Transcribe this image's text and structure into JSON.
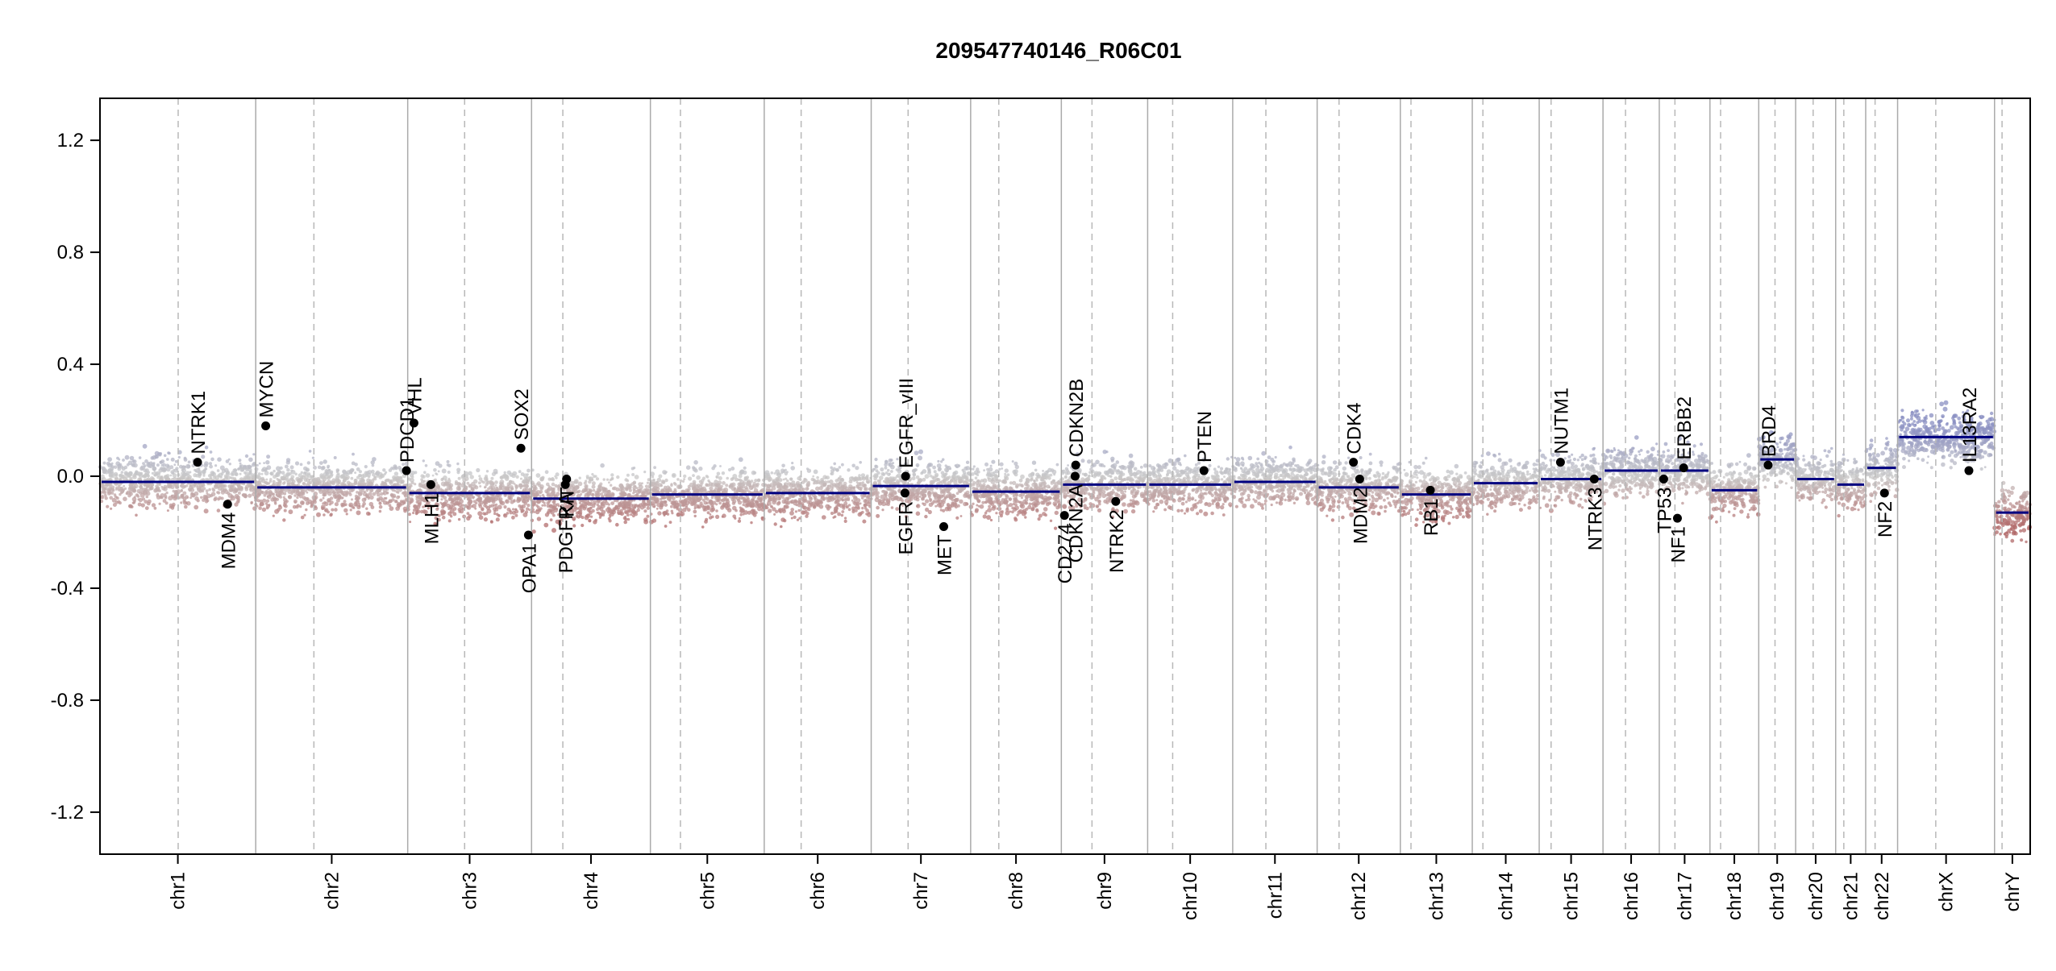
{
  "chart_data": {
    "type": "scatter",
    "title": "209547740146_R06C01",
    "xlabel": "",
    "ylabel": "",
    "ylim": [
      -1.35,
      1.35
    ],
    "y_ticks": [
      {
        "value": 1.2,
        "label": "1.2"
      },
      {
        "value": 0.8,
        "label": "0.8"
      },
      {
        "value": 0.4,
        "label": "0.4"
      },
      {
        "value": 0.0,
        "label": "0.0"
      },
      {
        "value": -0.4,
        "label": "-0.4"
      },
      {
        "value": -0.8,
        "label": "-0.8"
      },
      {
        "value": -1.2,
        "label": "-1.2"
      }
    ],
    "grid": false,
    "colors": {
      "gain": "#8a8fc2",
      "neutral": "#c8c8c8",
      "loss": "#b26a6a",
      "segment": "#000080",
      "boundary": "#aaaaaa",
      "centromere": "#b8b8b8",
      "gene_point": "#000000"
    },
    "chromosomes": [
      {
        "name": "chr1",
        "start": 0,
        "end": 249,
        "centromere": 125,
        "segment": -0.02
      },
      {
        "name": "chr2",
        "start": 249,
        "end": 492,
        "centromere": 342,
        "segment": -0.04
      },
      {
        "name": "chr3",
        "start": 492,
        "end": 690,
        "centromere": 583,
        "segment": -0.06
      },
      {
        "name": "chr4",
        "start": 690,
        "end": 880,
        "centromere": 740,
        "segment": -0.08
      },
      {
        "name": "chr5",
        "start": 880,
        "end": 1062,
        "centromere": 928,
        "segment": -0.065
      },
      {
        "name": "chr6",
        "start": 1062,
        "end": 1233,
        "centromere": 1121,
        "segment": -0.06
      },
      {
        "name": "chr7",
        "start": 1233,
        "end": 1392,
        "centromere": 1292,
        "segment": -0.035
      },
      {
        "name": "chr8",
        "start": 1392,
        "end": 1537,
        "centromere": 1437,
        "segment": -0.055
      },
      {
        "name": "chr9",
        "start": 1537,
        "end": 1675,
        "centromere": 1586,
        "segment": -0.03
      },
      {
        "name": "chr10",
        "start": 1675,
        "end": 1811,
        "centromere": 1715,
        "segment": -0.03
      },
      {
        "name": "chr11",
        "start": 1811,
        "end": 1946,
        "centromere": 1864,
        "segment": -0.02
      },
      {
        "name": "chr12",
        "start": 1946,
        "end": 2079,
        "centromere": 1981,
        "segment": -0.04
      },
      {
        "name": "chr13",
        "start": 2079,
        "end": 2194,
        "centromere": 2096,
        "segment": -0.065
      },
      {
        "name": "chr14",
        "start": 2194,
        "end": 2301,
        "centromere": 2211,
        "segment": -0.025
      },
      {
        "name": "chr15",
        "start": 2301,
        "end": 2403,
        "centromere": 2320,
        "segment": -0.01
      },
      {
        "name": "chr16",
        "start": 2403,
        "end": 2493,
        "centromere": 2439,
        "segment": 0.02
      },
      {
        "name": "chr17",
        "start": 2493,
        "end": 2574,
        "centromere": 2518,
        "segment": 0.02
      },
      {
        "name": "chr18",
        "start": 2574,
        "end": 2652,
        "centromere": 2591,
        "segment": -0.05
      },
      {
        "name": "chr19",
        "start": 2652,
        "end": 2711,
        "centromere": 2678,
        "segment": 0.06
      },
      {
        "name": "chr20",
        "start": 2711,
        "end": 2775,
        "centromere": 2739,
        "segment": -0.01
      },
      {
        "name": "chr21",
        "start": 2775,
        "end": 2823,
        "centromere": 2788,
        "segment": -0.03
      },
      {
        "name": "chr22",
        "start": 2823,
        "end": 2874,
        "centromere": 2838,
        "segment": 0.03
      },
      {
        "name": "chrX",
        "start": 2874,
        "end": 3029,
        "centromere": 2935,
        "segment": 0.14
      },
      {
        "name": "chrY",
        "start": 3029,
        "end": 3086,
        "centromere": 3041,
        "segment": -0.13
      }
    ],
    "genes": [
      {
        "name": "NTRK1",
        "chr": "chr1",
        "pos": 156,
        "value": 0.05,
        "label_side": "above"
      },
      {
        "name": "MDM4",
        "chr": "chr1",
        "pos": 204,
        "value": -0.1,
        "label_side": "below"
      },
      {
        "name": "MYCN",
        "chr": "chr2",
        "pos": 265,
        "value": 0.18,
        "label_side": "above"
      },
      {
        "name": "PDCD1",
        "chr": "chr2",
        "pos": 490,
        "value": 0.02,
        "label_side": "above"
      },
      {
        "name": "VHL",
        "chr": "chr3",
        "pos": 502,
        "value": 0.19,
        "label_side": "above"
      },
      {
        "name": "MLH1",
        "chr": "chr3",
        "pos": 529,
        "value": -0.03,
        "label_side": "below"
      },
      {
        "name": "SOX2",
        "chr": "chr3",
        "pos": 673,
        "value": 0.1,
        "label_side": "above"
      },
      {
        "name": "OPA1",
        "chr": "chr3",
        "pos": 685,
        "value": -0.21,
        "label_side": "below"
      },
      {
        "name": "PDGFRA",
        "chr": "chr4",
        "pos": 744,
        "value": -0.03,
        "label_side": "below"
      },
      {
        "name": "KIT",
        "chr": "chr4",
        "pos": 746,
        "value": -0.01,
        "label_side": "below"
      },
      {
        "name": "EGFR_vIII",
        "chr": "chr7",
        "pos": 1288,
        "value": 0.0,
        "label_side": "above"
      },
      {
        "name": "EGFR",
        "chr": "chr7",
        "pos": 1287,
        "value": -0.06,
        "label_side": "below"
      },
      {
        "name": "MET",
        "chr": "chr7",
        "pos": 1349,
        "value": -0.18,
        "label_side": "below"
      },
      {
        "name": "CD274",
        "chr": "chr9",
        "pos": 1542,
        "value": -0.14,
        "label_side": "below"
      },
      {
        "name": "CDKN2A",
        "chr": "chr9",
        "pos": 1559,
        "value": 0.0,
        "label_side": "below"
      },
      {
        "name": "CDKN2B",
        "chr": "chr9",
        "pos": 1560,
        "value": 0.04,
        "label_side": "above"
      },
      {
        "name": "NTRK2",
        "chr": "chr9",
        "pos": 1624,
        "value": -0.09,
        "label_side": "below"
      },
      {
        "name": "PTEN",
        "chr": "chr10",
        "pos": 1765,
        "value": 0.02,
        "label_side": "above"
      },
      {
        "name": "CDK4",
        "chr": "chr12",
        "pos": 2004,
        "value": 0.05,
        "label_side": "above"
      },
      {
        "name": "MDM2",
        "chr": "chr12",
        "pos": 2014,
        "value": -0.01,
        "label_side": "below"
      },
      {
        "name": "RB1",
        "chr": "chr13",
        "pos": 2127,
        "value": -0.05,
        "label_side": "below"
      },
      {
        "name": "NUTM1",
        "chr": "chr15",
        "pos": 2335,
        "value": 0.05,
        "label_side": "above"
      },
      {
        "name": "NTRK3",
        "chr": "chr15",
        "pos": 2389,
        "value": -0.01,
        "label_side": "below"
      },
      {
        "name": "TP53",
        "chr": "chr17",
        "pos": 2500,
        "value": -0.01,
        "label_side": "below"
      },
      {
        "name": "NF1",
        "chr": "chr17",
        "pos": 2522,
        "value": -0.15,
        "label_side": "below"
      },
      {
        "name": "ERBB2",
        "chr": "chr17",
        "pos": 2532,
        "value": 0.03,
        "label_side": "above"
      },
      {
        "name": "BRD4",
        "chr": "chr19",
        "pos": 2667,
        "value": 0.04,
        "label_side": "above"
      },
      {
        "name": "NF2",
        "chr": "chr22",
        "pos": 2853,
        "value": -0.06,
        "label_side": "below"
      },
      {
        "name": "IL13RA2",
        "chr": "chrX",
        "pos": 2988,
        "value": 0.02,
        "label_side": "above"
      }
    ]
  }
}
